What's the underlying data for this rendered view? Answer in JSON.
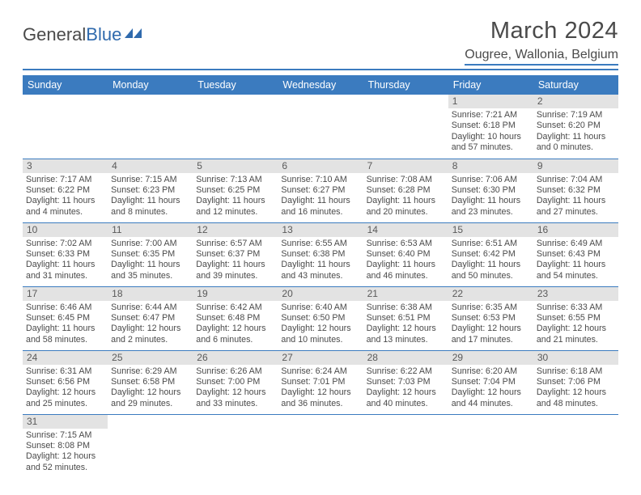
{
  "logo": {
    "part1": "General",
    "part2": "Blue"
  },
  "title": "March 2024",
  "location": "Ougree, Wallonia, Belgium",
  "theme": {
    "header_bg": "#3b7bbf",
    "header_fg": "#ffffff",
    "daynum_bg": "#e3e3e3",
    "border": "#3b7bbf",
    "text": "#4a4a4a"
  },
  "weekdays": [
    "Sunday",
    "Monday",
    "Tuesday",
    "Wednesday",
    "Thursday",
    "Friday",
    "Saturday"
  ],
  "weeks": [
    [
      null,
      null,
      null,
      null,
      null,
      {
        "n": "1",
        "sr": "7:21 AM",
        "ss": "6:18 PM",
        "dl": "10 hours and 57 minutes."
      },
      {
        "n": "2",
        "sr": "7:19 AM",
        "ss": "6:20 PM",
        "dl": "11 hours and 0 minutes."
      }
    ],
    [
      {
        "n": "3",
        "sr": "7:17 AM",
        "ss": "6:22 PM",
        "dl": "11 hours and 4 minutes."
      },
      {
        "n": "4",
        "sr": "7:15 AM",
        "ss": "6:23 PM",
        "dl": "11 hours and 8 minutes."
      },
      {
        "n": "5",
        "sr": "7:13 AM",
        "ss": "6:25 PM",
        "dl": "11 hours and 12 minutes."
      },
      {
        "n": "6",
        "sr": "7:10 AM",
        "ss": "6:27 PM",
        "dl": "11 hours and 16 minutes."
      },
      {
        "n": "7",
        "sr": "7:08 AM",
        "ss": "6:28 PM",
        "dl": "11 hours and 20 minutes."
      },
      {
        "n": "8",
        "sr": "7:06 AM",
        "ss": "6:30 PM",
        "dl": "11 hours and 23 minutes."
      },
      {
        "n": "9",
        "sr": "7:04 AM",
        "ss": "6:32 PM",
        "dl": "11 hours and 27 minutes."
      }
    ],
    [
      {
        "n": "10",
        "sr": "7:02 AM",
        "ss": "6:33 PM",
        "dl": "11 hours and 31 minutes."
      },
      {
        "n": "11",
        "sr": "7:00 AM",
        "ss": "6:35 PM",
        "dl": "11 hours and 35 minutes."
      },
      {
        "n": "12",
        "sr": "6:57 AM",
        "ss": "6:37 PM",
        "dl": "11 hours and 39 minutes."
      },
      {
        "n": "13",
        "sr": "6:55 AM",
        "ss": "6:38 PM",
        "dl": "11 hours and 43 minutes."
      },
      {
        "n": "14",
        "sr": "6:53 AM",
        "ss": "6:40 PM",
        "dl": "11 hours and 46 minutes."
      },
      {
        "n": "15",
        "sr": "6:51 AM",
        "ss": "6:42 PM",
        "dl": "11 hours and 50 minutes."
      },
      {
        "n": "16",
        "sr": "6:49 AM",
        "ss": "6:43 PM",
        "dl": "11 hours and 54 minutes."
      }
    ],
    [
      {
        "n": "17",
        "sr": "6:46 AM",
        "ss": "6:45 PM",
        "dl": "11 hours and 58 minutes."
      },
      {
        "n": "18",
        "sr": "6:44 AM",
        "ss": "6:47 PM",
        "dl": "12 hours and 2 minutes."
      },
      {
        "n": "19",
        "sr": "6:42 AM",
        "ss": "6:48 PM",
        "dl": "12 hours and 6 minutes."
      },
      {
        "n": "20",
        "sr": "6:40 AM",
        "ss": "6:50 PM",
        "dl": "12 hours and 10 minutes."
      },
      {
        "n": "21",
        "sr": "6:38 AM",
        "ss": "6:51 PM",
        "dl": "12 hours and 13 minutes."
      },
      {
        "n": "22",
        "sr": "6:35 AM",
        "ss": "6:53 PM",
        "dl": "12 hours and 17 minutes."
      },
      {
        "n": "23",
        "sr": "6:33 AM",
        "ss": "6:55 PM",
        "dl": "12 hours and 21 minutes."
      }
    ],
    [
      {
        "n": "24",
        "sr": "6:31 AM",
        "ss": "6:56 PM",
        "dl": "12 hours and 25 minutes."
      },
      {
        "n": "25",
        "sr": "6:29 AM",
        "ss": "6:58 PM",
        "dl": "12 hours and 29 minutes."
      },
      {
        "n": "26",
        "sr": "6:26 AM",
        "ss": "7:00 PM",
        "dl": "12 hours and 33 minutes."
      },
      {
        "n": "27",
        "sr": "6:24 AM",
        "ss": "7:01 PM",
        "dl": "12 hours and 36 minutes."
      },
      {
        "n": "28",
        "sr": "6:22 AM",
        "ss": "7:03 PM",
        "dl": "12 hours and 40 minutes."
      },
      {
        "n": "29",
        "sr": "6:20 AM",
        "ss": "7:04 PM",
        "dl": "12 hours and 44 minutes."
      },
      {
        "n": "30",
        "sr": "6:18 AM",
        "ss": "7:06 PM",
        "dl": "12 hours and 48 minutes."
      }
    ],
    [
      {
        "n": "31",
        "sr": "7:15 AM",
        "ss": "8:08 PM",
        "dl": "12 hours and 52 minutes."
      },
      null,
      null,
      null,
      null,
      null,
      null
    ]
  ],
  "labels": {
    "sunrise": "Sunrise:",
    "sunset": "Sunset:",
    "daylight": "Daylight:"
  }
}
